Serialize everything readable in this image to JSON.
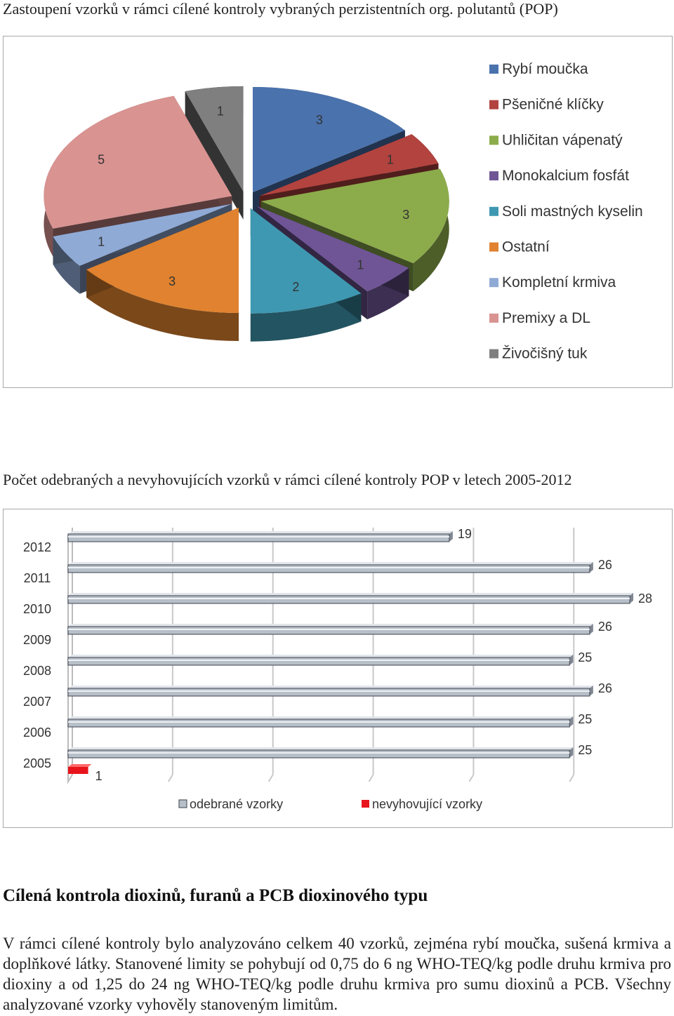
{
  "captions": {
    "pie": "Zastoupení vzorků v rámci cílené kontroly vybraných perzistentních org. polutantů (POP)",
    "bar": "Počet odebraných a nevyhovujících vzorků v rámci cílené kontroly POP v letech 2005-2012"
  },
  "chart_data": [
    {
      "type": "pie",
      "title": "",
      "legend_position": "right",
      "categories": [
        "Rybí moučka",
        "Pšeničné klíčky",
        "Uhličitan vápenatý",
        "Monokalcium fosfát",
        "Soli mastných kyselin",
        "Ostatní",
        "Kompletní krmiva",
        "Premixy a DL",
        "Živočišný tuk"
      ],
      "values": [
        3,
        1,
        3,
        1,
        2,
        3,
        1,
        5,
        1
      ],
      "value_labels": [
        "3",
        "1",
        "3",
        "1",
        "2",
        "3",
        "1",
        "5",
        "1"
      ],
      "colors": [
        "#4a72ad",
        "#b2433f",
        "#8cab4b",
        "#6f5595",
        "#3f98b1",
        "#e0822f",
        "#90aad6",
        "#d99391",
        "#7f7f7f"
      ]
    },
    {
      "type": "bar",
      "orientation": "horizontal",
      "title": "",
      "categories": [
        "2005",
        "2006",
        "2007",
        "2008",
        "2009",
        "2010",
        "2011",
        "2012"
      ],
      "series": [
        {
          "name": "odebrané vzorky",
          "values": [
            25,
            25,
            26,
            25,
            26,
            28,
            26,
            19
          ],
          "labels": [
            "25",
            "25",
            "26",
            "25",
            "26",
            "28",
            "26",
            "19"
          ],
          "color": "#b7bfc9"
        },
        {
          "name": "nevyhovující vzorky",
          "values": [
            1,
            null,
            null,
            null,
            null,
            null,
            null,
            null
          ],
          "labels": [
            "1",
            "",
            "",
            "",
            "",
            "",
            "",
            ""
          ],
          "color": "#e8141c"
        }
      ],
      "xlim": [
        0,
        28
      ],
      "grid": true,
      "legend_position": "bottom"
    }
  ],
  "section": {
    "heading": "Cílená kontrola dioxinů, furanů a PCB dioxinového typu",
    "body": "V rámci cílené kontroly bylo analyzováno celkem 40 vzorků, zejména rybí moučka, sušená krmiva a doplňkové látky. Stanovené limity se pohybují od 0,75 do 6 ng WHO-TEQ/kg podle druhu krmiva pro dioxiny a od 1,25 do 24 ng WHO-TEQ/kg podle druhu krmiva pro sumu dioxinů a PCB. Všechny analyzované vzorky vyhověly stanoveným limitům."
  }
}
